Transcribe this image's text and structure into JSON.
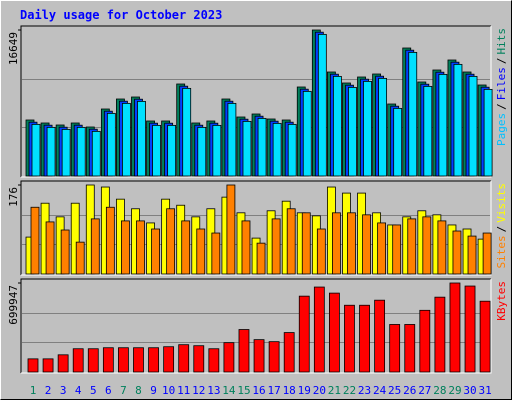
{
  "title": "Daily usage for October 2023",
  "legend_separator": "/",
  "chart_data": [
    {
      "type": "bar",
      "series": [
        {
          "name": "Hits",
          "color": "#00805c",
          "values": [
            6386,
            6044,
            5816,
            6044,
            5588,
            7640,
            8780,
            9008,
            6272,
            6272,
            10491,
            6044,
            6272,
            8780,
            6728,
            7070,
            6500,
            6386,
            10149,
            16649,
            11859,
            10605,
            11289,
            11631,
            8210,
            14596,
            10719,
            12087,
            13228,
            11859,
            10377
          ]
        },
        {
          "name": "Files",
          "color": "#0040ff",
          "values": [
            6136,
            5794,
            5566,
            5794,
            5338,
            7390,
            8530,
            8758,
            6022,
            6022,
            10241,
            5794,
            6022,
            8530,
            6478,
            6820,
            6250,
            6136,
            9899,
            16399,
            11609,
            10355,
            11039,
            11381,
            7960,
            14346,
            10469,
            11837,
            12978,
            11609,
            10127
          ]
        },
        {
          "name": "Pages",
          "color": "#00e0ff",
          "values": [
            5886,
            5544,
            5316,
            5544,
            5088,
            7140,
            8280,
            8508,
            5772,
            5772,
            9991,
            5544,
            5772,
            8280,
            6228,
            6570,
            6000,
            5886,
            9649,
            16149,
            11359,
            10105,
            10789,
            11131,
            7710,
            14096,
            10219,
            11587,
            12728,
            11359,
            9877
          ]
        }
      ],
      "ylim": [
        0,
        16649
      ],
      "yticks": [
        16649
      ]
    },
    {
      "type": "bar",
      "series": [
        {
          "name": "Visits",
          "color": "#ffff00",
          "values": [
            73,
            140,
            113,
            140,
            176,
            172,
            148,
            129,
            101,
            148,
            136,
            113,
            129,
            152,
            121,
            71,
            125,
            144,
            121,
            115,
            172,
            160,
            160,
            121,
            97,
            113,
            125,
            117,
            97,
            89,
            69
          ]
        },
        {
          "name": "Sites",
          "color": "#ff8000",
          "values": [
            132,
            103,
            87,
            63,
            109,
            132,
            105,
            105,
            89,
            129,
            105,
            89,
            81,
            176,
            105,
            61,
            109,
            129,
            121,
            89,
            121,
            121,
            117,
            101,
            97,
            109,
            113,
            105,
            85,
            75,
            81
          ]
        }
      ],
      "ylim": [
        0,
        176
      ],
      "yticks": [
        176
      ]
    },
    {
      "type": "bar",
      "categories": [
        "1",
        "2",
        "3",
        "4",
        "5",
        "6",
        "7",
        "8",
        "9",
        "10",
        "11",
        "12",
        "13",
        "14",
        "15",
        "16",
        "17",
        "18",
        "19",
        "20",
        "21",
        "22",
        "23",
        "24",
        "25",
        "26",
        "27",
        "28",
        "29",
        "30",
        "31"
      ],
      "series": [
        {
          "name": "KBytes",
          "color": "#ff0000",
          "values": [
            103402,
            103402,
            135218,
            182942,
            182942,
            190896,
            190896,
            190896,
            190896,
            198850,
            214758,
            206804,
            182942,
            230666,
            334068,
            254528,
            238620,
            310206,
            596550,
            668136,
            620412,
            524964,
            524964,
            564734,
            373838,
            373838,
            485194,
            588596,
            699947,
            676090,
            556780
          ]
        }
      ],
      "ylim": [
        0,
        699947
      ],
      "yticks": [
        699947
      ]
    }
  ]
}
